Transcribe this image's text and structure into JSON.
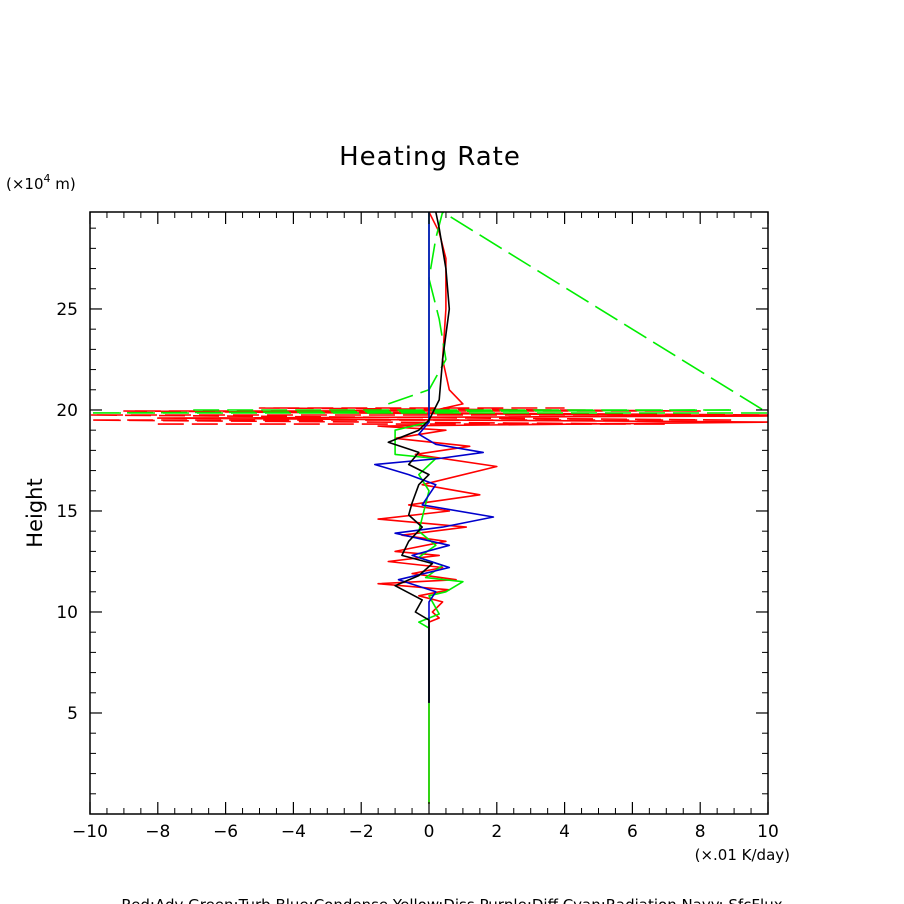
{
  "chart_data": {
    "type": "line",
    "title": "Heating Rate",
    "ylabel": "Height",
    "y_unit_base": "(×10",
    "y_unit_exp": "4",
    "y_unit_tail": " m)",
    "x_unit": "(×.01 K/day)",
    "xlim": [
      -10,
      10
    ],
    "ylim": [
      0,
      29.8
    ],
    "x_ticks": [
      -10,
      -8,
      -6,
      -4,
      -2,
      0,
      2,
      4,
      6,
      8,
      10
    ],
    "x_tick_labels": [
      "−10",
      "−8",
      "−6",
      "−4",
      "−2",
      "0",
      "2",
      "4",
      "6",
      "8",
      "10"
    ],
    "y_ticks": [
      5,
      10,
      15,
      20,
      25
    ],
    "y_tick_labels": [
      "5",
      "10",
      "15",
      "20",
      "25"
    ],
    "legend_text": "Red:Adv  Green:Turb  Blue:Condense  Yellow:Diss  Purple:Diff  Cyan:Radiation  Navy: SfcFlux",
    "series": [
      {
        "color": "#ff0000",
        "dash": "solid",
        "points": [
          [
            0,
            0.5
          ],
          [
            0,
            9.5
          ],
          [
            0.3,
            9.7
          ],
          [
            0.1,
            10.0
          ],
          [
            0.4,
            10.5
          ],
          [
            -0.3,
            10.8
          ],
          [
            0.6,
            11.1
          ],
          [
            -1.5,
            11.4
          ],
          [
            0.8,
            11.6
          ],
          [
            -0.5,
            11.9
          ],
          [
            0.4,
            12.2
          ],
          [
            -1.2,
            12.5
          ],
          [
            0.3,
            12.8
          ],
          [
            -1.0,
            13.0
          ],
          [
            0.5,
            13.5
          ],
          [
            -0.8,
            13.8
          ],
          [
            1.1,
            14.2
          ],
          [
            -1.5,
            14.6
          ],
          [
            0.6,
            15.0
          ],
          [
            -0.6,
            15.3
          ],
          [
            1.5,
            15.8
          ],
          [
            -0.2,
            16.3
          ],
          [
            2.0,
            17.2
          ],
          [
            -0.4,
            17.8
          ],
          [
            1.2,
            18.2
          ],
          [
            -1.0,
            18.6
          ],
          [
            0.5,
            19.0
          ],
          [
            -1.5,
            19.2
          ],
          [
            10,
            19.4
          ],
          [
            -8,
            19.6
          ],
          [
            10,
            19.7
          ],
          [
            -6,
            19.9
          ],
          [
            0.2,
            20.0
          ],
          [
            1.0,
            20.3
          ],
          [
            0.6,
            21.0
          ],
          [
            0.4,
            22.5
          ],
          [
            0.5,
            25.0
          ],
          [
            0.5,
            27.5
          ],
          [
            0.3,
            28.8
          ],
          [
            0,
            29.8
          ]
        ]
      },
      {
        "color": "#ff0000",
        "dash": "long",
        "points": [
          [
            -8,
            19.3
          ],
          [
            7,
            19.3
          ],
          [
            -10,
            19.5
          ],
          [
            9,
            19.5
          ],
          [
            -10,
            19.75
          ],
          [
            10,
            19.75
          ],
          [
            -9,
            19.95
          ],
          [
            8,
            19.95
          ],
          [
            -5,
            20.1
          ],
          [
            4,
            20.1
          ]
        ]
      },
      {
        "color": "#00ee00",
        "dash": "solid",
        "points": [
          [
            0,
            0.5
          ],
          [
            0,
            9.2
          ],
          [
            -0.3,
            9.5
          ],
          [
            0.3,
            9.9
          ],
          [
            0,
            10.8
          ],
          [
            0.5,
            11.0
          ],
          [
            1.0,
            11.5
          ],
          [
            -0.1,
            11.7
          ],
          [
            0.4,
            12.3
          ],
          [
            -0.3,
            12.7
          ],
          [
            0.2,
            13.3
          ],
          [
            -0.3,
            14.0
          ],
          [
            0,
            16.0
          ],
          [
            -0.3,
            16.8
          ],
          [
            0.2,
            17.6
          ],
          [
            -1,
            17.8
          ],
          [
            -1,
            19.0
          ],
          [
            0,
            19.4
          ],
          [
            0,
            29.8
          ]
        ]
      },
      {
        "color": "#00ee00",
        "dash": "long",
        "points": [
          [
            -1.2,
            20.3
          ],
          [
            0,
            21.0
          ],
          [
            0.5,
            22.5
          ],
          [
            0.3,
            24.5
          ],
          [
            0.0,
            26.5
          ],
          [
            0.2,
            28.5
          ],
          [
            0.4,
            29.8
          ],
          [
            10,
            19.85
          ],
          [
            -10,
            19.85
          ],
          [
            9,
            20.0
          ],
          [
            -7,
            20.0
          ]
        ]
      },
      {
        "color": "#0000cc",
        "dash": "solid",
        "points": [
          [
            0,
            5.5
          ],
          [
            0,
            10.5
          ],
          [
            0.2,
            11.0
          ],
          [
            -0.9,
            11.6
          ],
          [
            0.6,
            12.2
          ],
          [
            -0.5,
            12.8
          ],
          [
            0.6,
            13.3
          ],
          [
            -1.0,
            13.9
          ],
          [
            0.4,
            14.2
          ],
          [
            1.9,
            14.7
          ],
          [
            -0.2,
            15.3
          ],
          [
            0.2,
            16.3
          ],
          [
            -0.6,
            16.8
          ],
          [
            -1.6,
            17.3
          ],
          [
            0.3,
            17.6
          ],
          [
            1.6,
            17.9
          ],
          [
            0.2,
            18.3
          ],
          [
            -0.3,
            18.8
          ],
          [
            0,
            19.4
          ],
          [
            0,
            29.8
          ]
        ]
      },
      {
        "color": "#000000",
        "dash": "solid",
        "points": [
          [
            0,
            5.5
          ],
          [
            0,
            9.6
          ],
          [
            -0.4,
            10.0
          ],
          [
            -0.2,
            10.6
          ],
          [
            -1,
            11.3
          ],
          [
            -0.3,
            11.8
          ],
          [
            0.1,
            12.4
          ],
          [
            -0.8,
            12.8
          ],
          [
            -0.6,
            13.5
          ],
          [
            -0.2,
            14.2
          ],
          [
            -0.6,
            14.8
          ],
          [
            -0.5,
            15.4
          ],
          [
            -0.3,
            16.3
          ],
          [
            0,
            16.8
          ],
          [
            -0.6,
            17.3
          ],
          [
            -0.3,
            17.9
          ],
          [
            -1.2,
            18.4
          ],
          [
            -0.3,
            19.0
          ],
          [
            0,
            19.5
          ],
          [
            0.3,
            20.5
          ],
          [
            0.4,
            22.5
          ],
          [
            0.6,
            25.0
          ],
          [
            0.5,
            27.0
          ],
          [
            0.3,
            29.0
          ],
          [
            0.2,
            29.8
          ]
        ]
      }
    ]
  }
}
